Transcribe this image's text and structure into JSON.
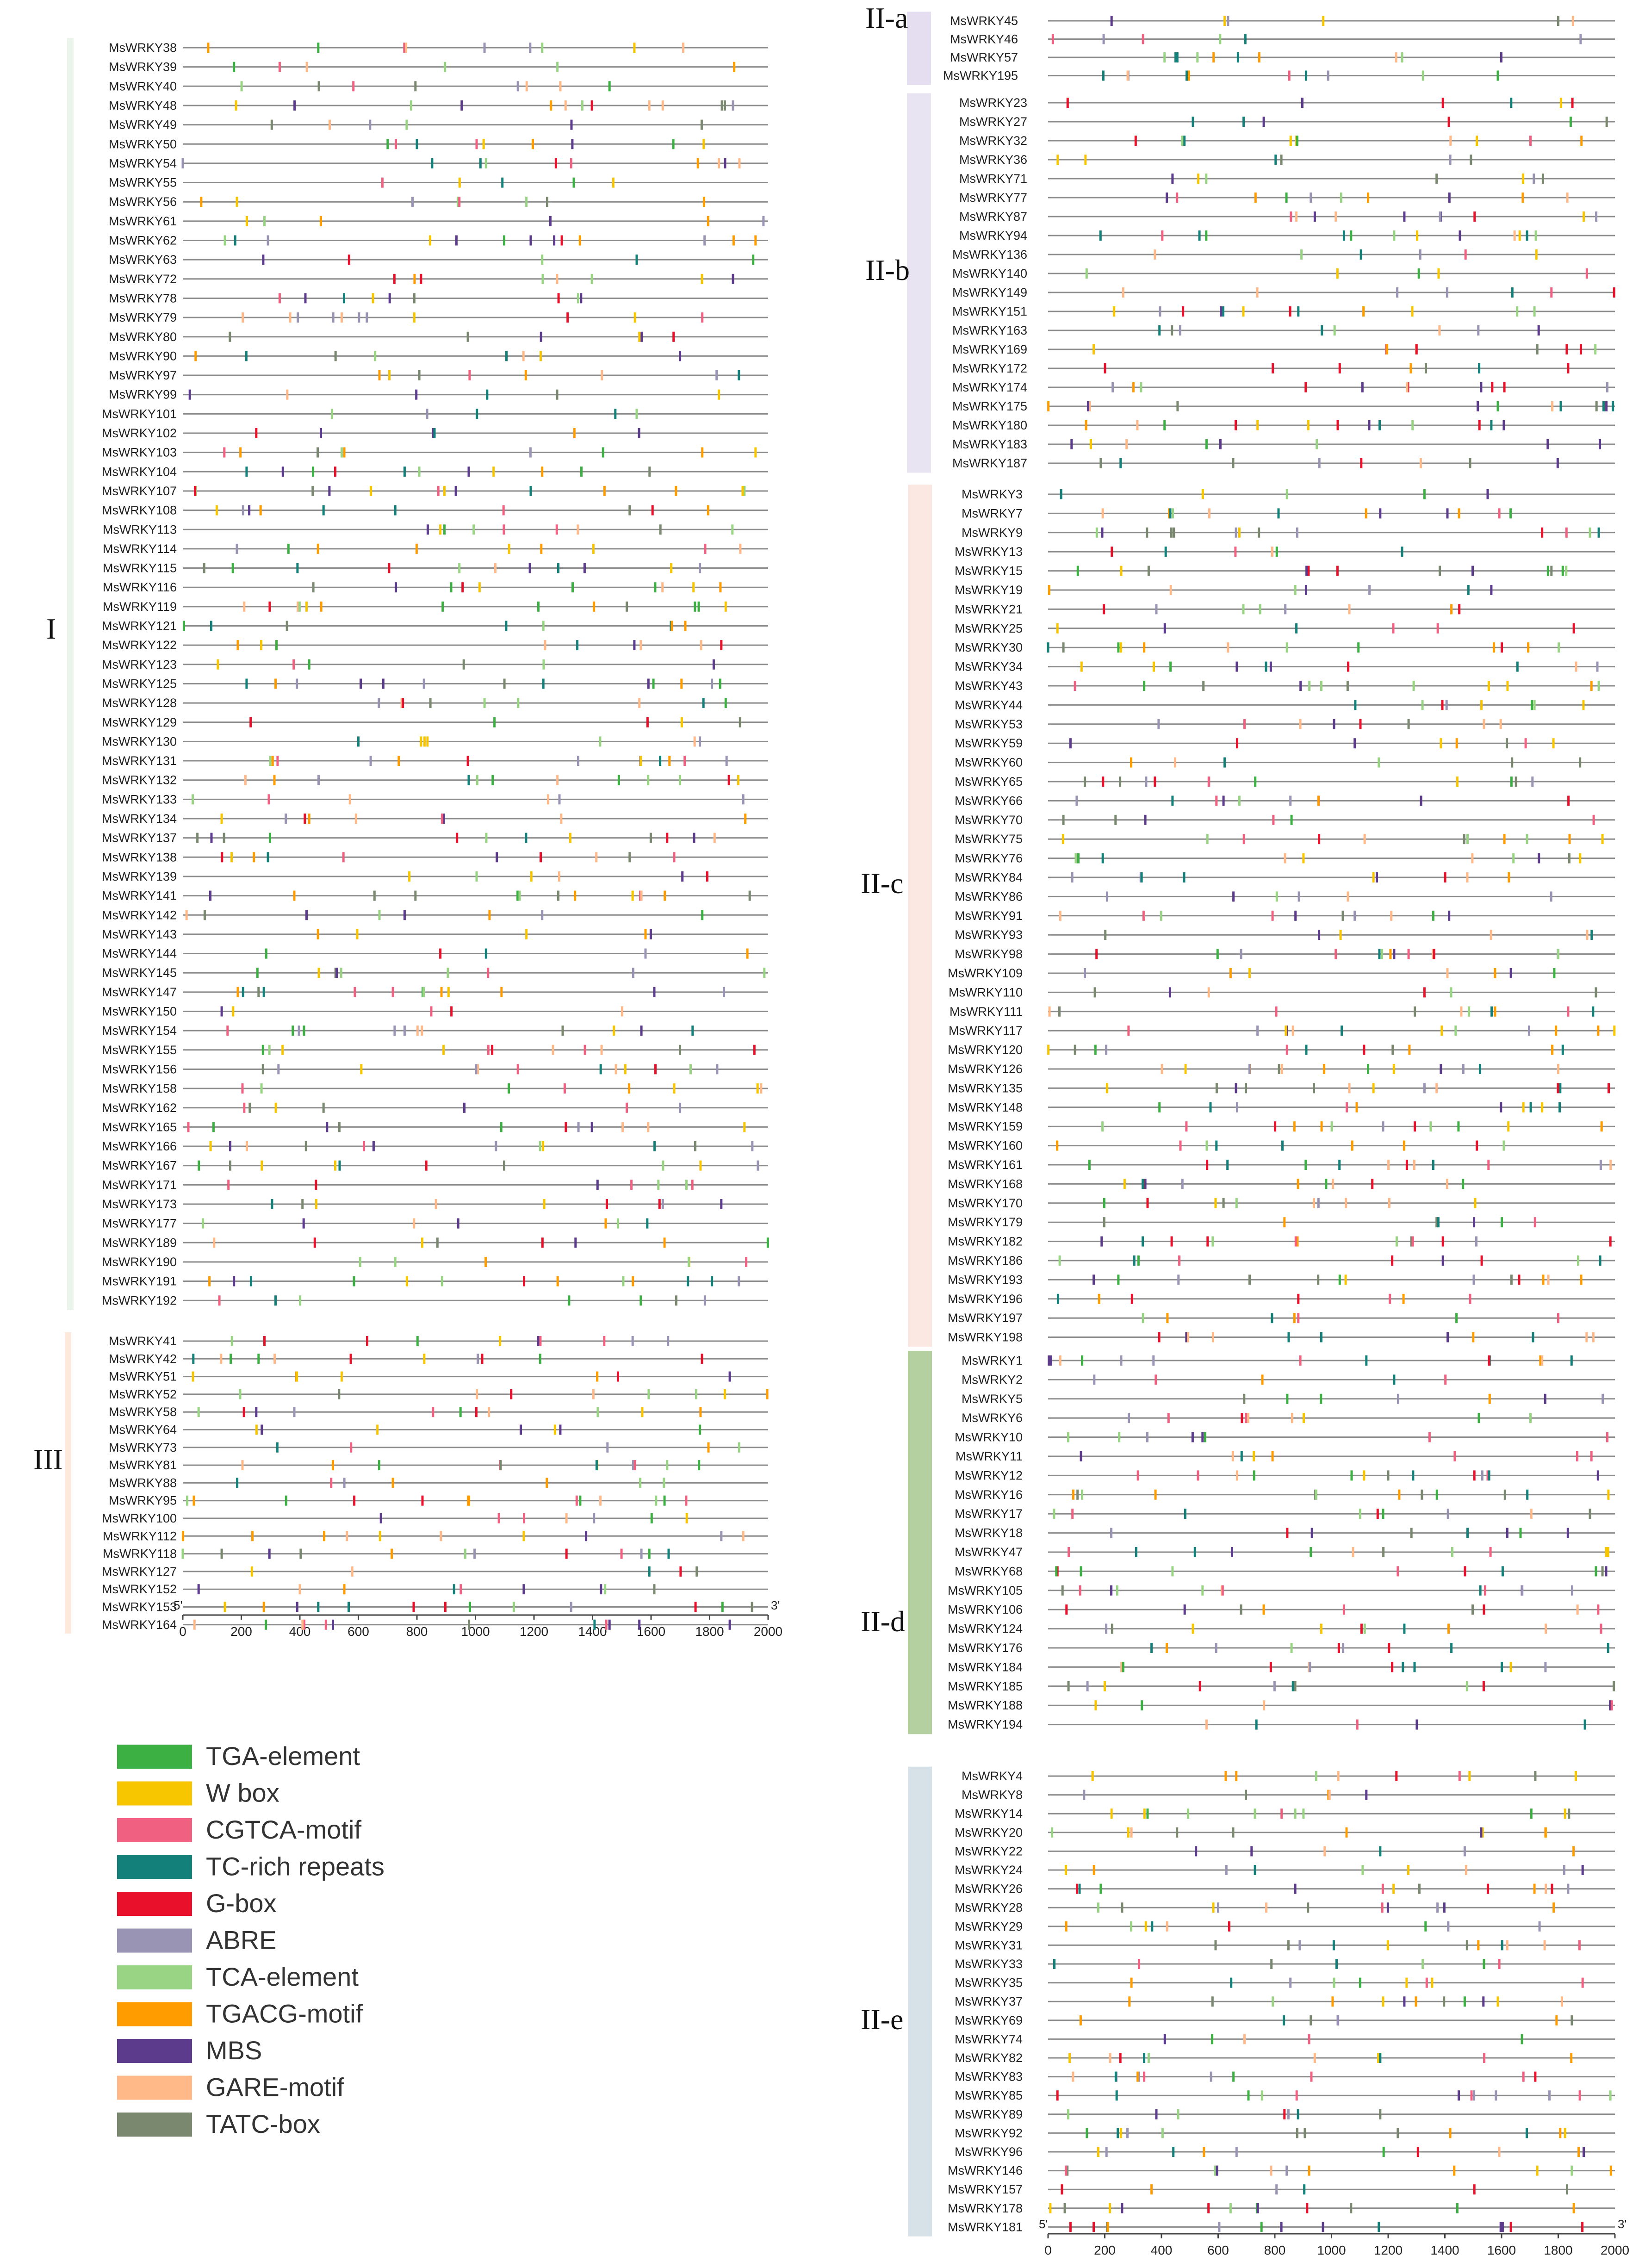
{
  "chart_data": {
    "type": "promoter-cis-element-map",
    "x_range": [
      0,
      2000
    ],
    "x_ticks": [
      "0",
      "200",
      "400",
      "600",
      "800",
      "1000",
      "1200",
      "1400",
      "1600",
      "1800",
      "2000"
    ],
    "end_labels": {
      "five_prime": "5'",
      "three_prime": "3'"
    },
    "legend": [
      {
        "name": "TGA-element",
        "color": "#3cb043"
      },
      {
        "name": "W box",
        "color": "#f7c600"
      },
      {
        "name": "CGTCA-motif",
        "color": "#f06080"
      },
      {
        "name": "TC-rich repeats",
        "color": "#14807a"
      },
      {
        "name": "G-box",
        "color": "#e8102a"
      },
      {
        "name": "ABRE",
        "color": "#9a94b4"
      },
      {
        "name": "TCA-element",
        "color": "#98d484"
      },
      {
        "name": "TGACG-motif",
        "color": "#ff9c00"
      },
      {
        "name": "MBS",
        "color": "#5c3a8c"
      },
      {
        "name": "GARE-motif",
        "color": "#ffb888"
      },
      {
        "name": "TATC-box",
        "color": "#7a8870"
      }
    ],
    "groups": [
      {
        "id": "I",
        "label": "I",
        "bar_color": "#eaf4ea",
        "genes": [
          "MsWRKY38",
          "MsWRKY39",
          "MsWRKY40",
          "MsWRKY48",
          "MsWRKY49",
          "MsWRKY50",
          "MsWRKY54",
          "MsWRKY55",
          "MsWRKY56",
          "MsWRKY61",
          "MsWRKY62",
          "MsWRKY63",
          "MsWRKY72",
          "MsWRKY78",
          "MsWRKY79",
          "MsWRKY80",
          "MsWRKY90",
          "MsWRKY97",
          "MsWRKY99",
          "MsWRKY101",
          "MsWRKY102",
          "MsWRKY103",
          "MsWRKY104",
          "MsWRKY107",
          "MsWRKY108",
          "MsWRKY113",
          "MsWRKY114",
          "MsWRKY115",
          "MsWRKY116",
          "MsWRKY119",
          "MsWRKY121",
          "MsWRKY122",
          "MsWRKY123",
          "MsWRKY125",
          "MsWRKY128",
          "MsWRKY129",
          "MsWRKY130",
          "MsWRKY131",
          "MsWRKY132",
          "MsWRKY133",
          "MsWRKY134",
          "MsWRKY137",
          "MsWRKY138",
          "MsWRKY139",
          "MsWRKY141",
          "MsWRKY142",
          "MsWRKY143",
          "MsWRKY144",
          "MsWRKY145",
          "MsWRKY147",
          "MsWRKY150",
          "MsWRKY154",
          "MsWRKY155",
          "MsWRKY156",
          "MsWRKY158",
          "MsWRKY162",
          "MsWRKY165",
          "MsWRKY166",
          "MsWRKY167",
          "MsWRKY171",
          "MsWRKY173",
          "MsWRKY177",
          "MsWRKY189",
          "MsWRKY190",
          "MsWRKY191",
          "MsWRKY192"
        ]
      },
      {
        "id": "III",
        "label": "III",
        "bar_color": "#fde8dc",
        "genes": [
          "MsWRKY41",
          "MsWRKY42",
          "MsWRKY51",
          "MsWRKY52",
          "MsWRKY58",
          "MsWRKY64",
          "MsWRKY73",
          "MsWRKY81",
          "MsWRKY88",
          "MsWRKY95",
          "MsWRKY100",
          "MsWRKY112",
          "MsWRKY118",
          "MsWRKY127",
          "MsWRKY152",
          "MsWRKY153",
          "MsWRKY164"
        ]
      },
      {
        "id": "IIa",
        "label": "II-a",
        "bar_color": "#e4def0",
        "genes": [
          "MsWRKY45",
          "MsWRKY46",
          "MsWRKY57",
          "MsWRKY195"
        ]
      },
      {
        "id": "IIb",
        "label": "II-b",
        "bar_color": "#e8e4f2",
        "genes": [
          "MsWRKY23",
          "MsWRKY27",
          "MsWRKY32",
          "MsWRKY36",
          "MsWRKY71",
          "MsWRKY77",
          "MsWRKY87",
          "MsWRKY94",
          "MsWRKY136",
          "MsWRKY140",
          "MsWRKY149",
          "MsWRKY151",
          "MsWRKY163",
          "MsWRKY169",
          "MsWRKY172",
          "MsWRKY174",
          "MsWRKY175",
          "MsWRKY180",
          "MsWRKY183",
          "MsWRKY187"
        ]
      },
      {
        "id": "IIc",
        "label": "II-c",
        "bar_color": "#fce8e2",
        "genes": [
          "MsWRKY3",
          "MsWRKY7",
          "MsWRKY9",
          "MsWRKY13",
          "MsWRKY15",
          "MsWRKY19",
          "MsWRKY21",
          "MsWRKY25",
          "MsWRKY30",
          "MsWRKY34",
          "MsWRKY43",
          "MsWRKY44",
          "MsWRKY53",
          "MsWRKY59",
          "MsWRKY60",
          "MsWRKY65",
          "MsWRKY66",
          "MsWRKY70",
          "MsWRKY75",
          "MsWRKY76",
          "MsWRKY84",
          "MsWRKY86",
          "MsWRKY91",
          "MsWRKY93",
          "MsWRKY98",
          "MsWRKY109",
          "MsWRKY110",
          "MsWRKY111",
          "MsWRKY117",
          "MsWRKY120",
          "MsWRKY126",
          "MsWRKY135",
          "MsWRKY148",
          "MsWRKY159",
          "MsWRKY160",
          "MsWRKY161",
          "MsWRKY168",
          "MsWRKY170",
          "MsWRKY179",
          "MsWRKY182",
          "MsWRKY186",
          "MsWRKY193",
          "MsWRKY196",
          "MsWRKY197",
          "MsWRKY198"
        ]
      },
      {
        "id": "IId",
        "label": "II-d",
        "bar_color": "#b4d0a0",
        "genes": [
          "MsWRKY1",
          "MsWRKY2",
          "MsWRKY5",
          "MsWRKY6",
          "MsWRKY10",
          "MsWRKY11",
          "MsWRKY12",
          "MsWRKY16",
          "MsWRKY17",
          "MsWRKY18",
          "MsWRKY47",
          "MsWRKY68",
          "MsWRKY105",
          "MsWRKY106",
          "MsWRKY124",
          "MsWRKY176",
          "MsWRKY184",
          "MsWRKY185",
          "MsWRKY188",
          "MsWRKY194"
        ]
      },
      {
        "id": "IIe",
        "label": "II-e",
        "bar_color": "#d6e2e8",
        "genes": [
          "MsWRKY4",
          "MsWRKY8",
          "MsWRKY14",
          "MsWRKY20",
          "MsWRKY22",
          "MsWRKY24",
          "MsWRKY26",
          "MsWRKY28",
          "MsWRKY29",
          "MsWRKY31",
          "MsWRKY33",
          "MsWRKY35",
          "MsWRKY37",
          "MsWRKY69",
          "MsWRKY74",
          "MsWRKY82",
          "MsWRKY83",
          "MsWRKY85",
          "MsWRKY89",
          "MsWRKY92",
          "MsWRKY96",
          "MsWRKY146",
          "MsWRKY157",
          "MsWRKY178",
          "MsWRKY181"
        ]
      }
    ]
  }
}
